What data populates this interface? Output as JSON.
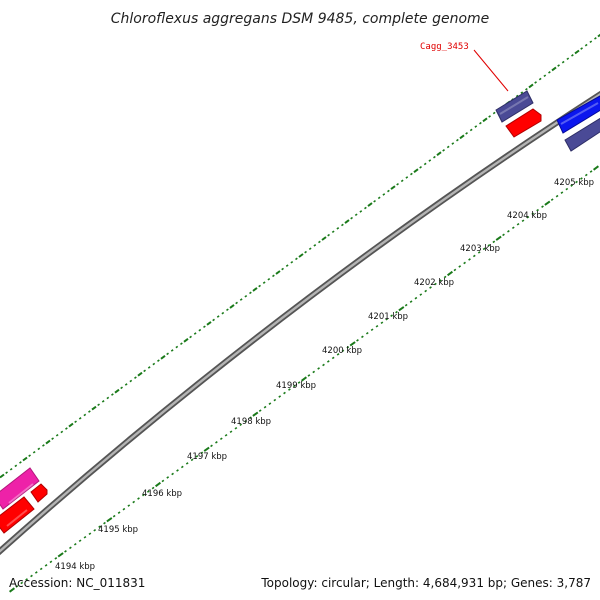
{
  "header": {
    "title": "Chloroflexus aggregans DSM 9485, complete genome"
  },
  "footer": {
    "accession": "Accession: NC_011831",
    "summary": "Topology: circular; Length: 4,684,931 bp; Genes: 3,787"
  },
  "colors": {
    "backbone": "#7a7a7a",
    "tick": "#1a7a1a",
    "gene_navy": "#4a4a96",
    "gene_blue": "#0b16ee",
    "gene_red": "#ff0000",
    "gene_pink": "#ee22a8",
    "label_red": "#e00000"
  },
  "map": {
    "scale_labels": [
      "4194 kbp",
      "4195 kbp",
      "4196 kbp",
      "4197 kbp",
      "4198 kbp",
      "4199 kbp",
      "4200 kbp",
      "4201 kbp",
      "4202 kbp",
      "4203 kbp",
      "4204 kbp",
      "4205 kbp"
    ],
    "gene_label": "Cagg_3453"
  }
}
